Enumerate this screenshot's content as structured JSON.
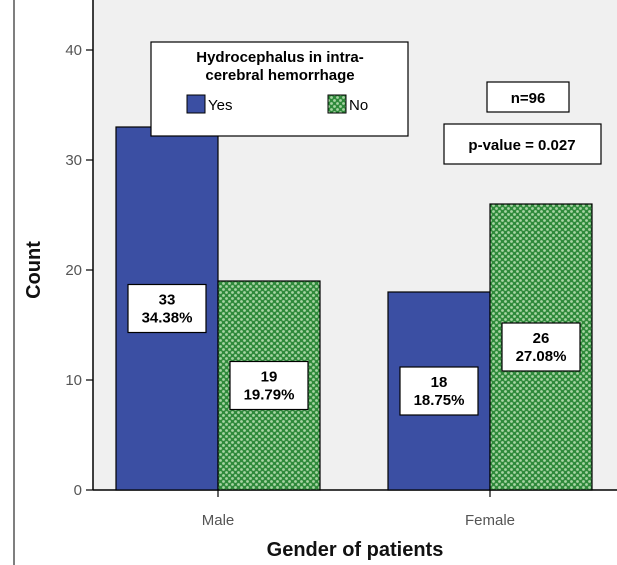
{
  "chart_data": {
    "type": "bar",
    "categories": [
      "Male",
      "Female"
    ],
    "series": [
      {
        "name": "Yes",
        "values": [
          33,
          18
        ],
        "labels": [
          "34.38%",
          "18.75%"
        ],
        "color": "#3b4fa3"
      },
      {
        "name": "No",
        "values": [
          19,
          26
        ],
        "labels": [
          "19.79%",
          "27.08%"
        ],
        "color": "#2f8a3b"
      }
    ],
    "title": "",
    "xlabel": "Gender of patients",
    "ylabel": "Count",
    "ylim": [
      0,
      40
    ],
    "yticks": [
      "0",
      "10",
      "20",
      "30",
      "40"
    ],
    "grid": false,
    "legend_title": "Hydrocephalus in intra-cerebral hemorrhage",
    "legend_title_lines": [
      "Hydrocephalus in intra-",
      "cerebral hemorrhage"
    ],
    "legend_position": "top-left",
    "annotations": [
      "n=96",
      "p-value = 0.027"
    ],
    "plot_background": "#f0f0f0"
  }
}
